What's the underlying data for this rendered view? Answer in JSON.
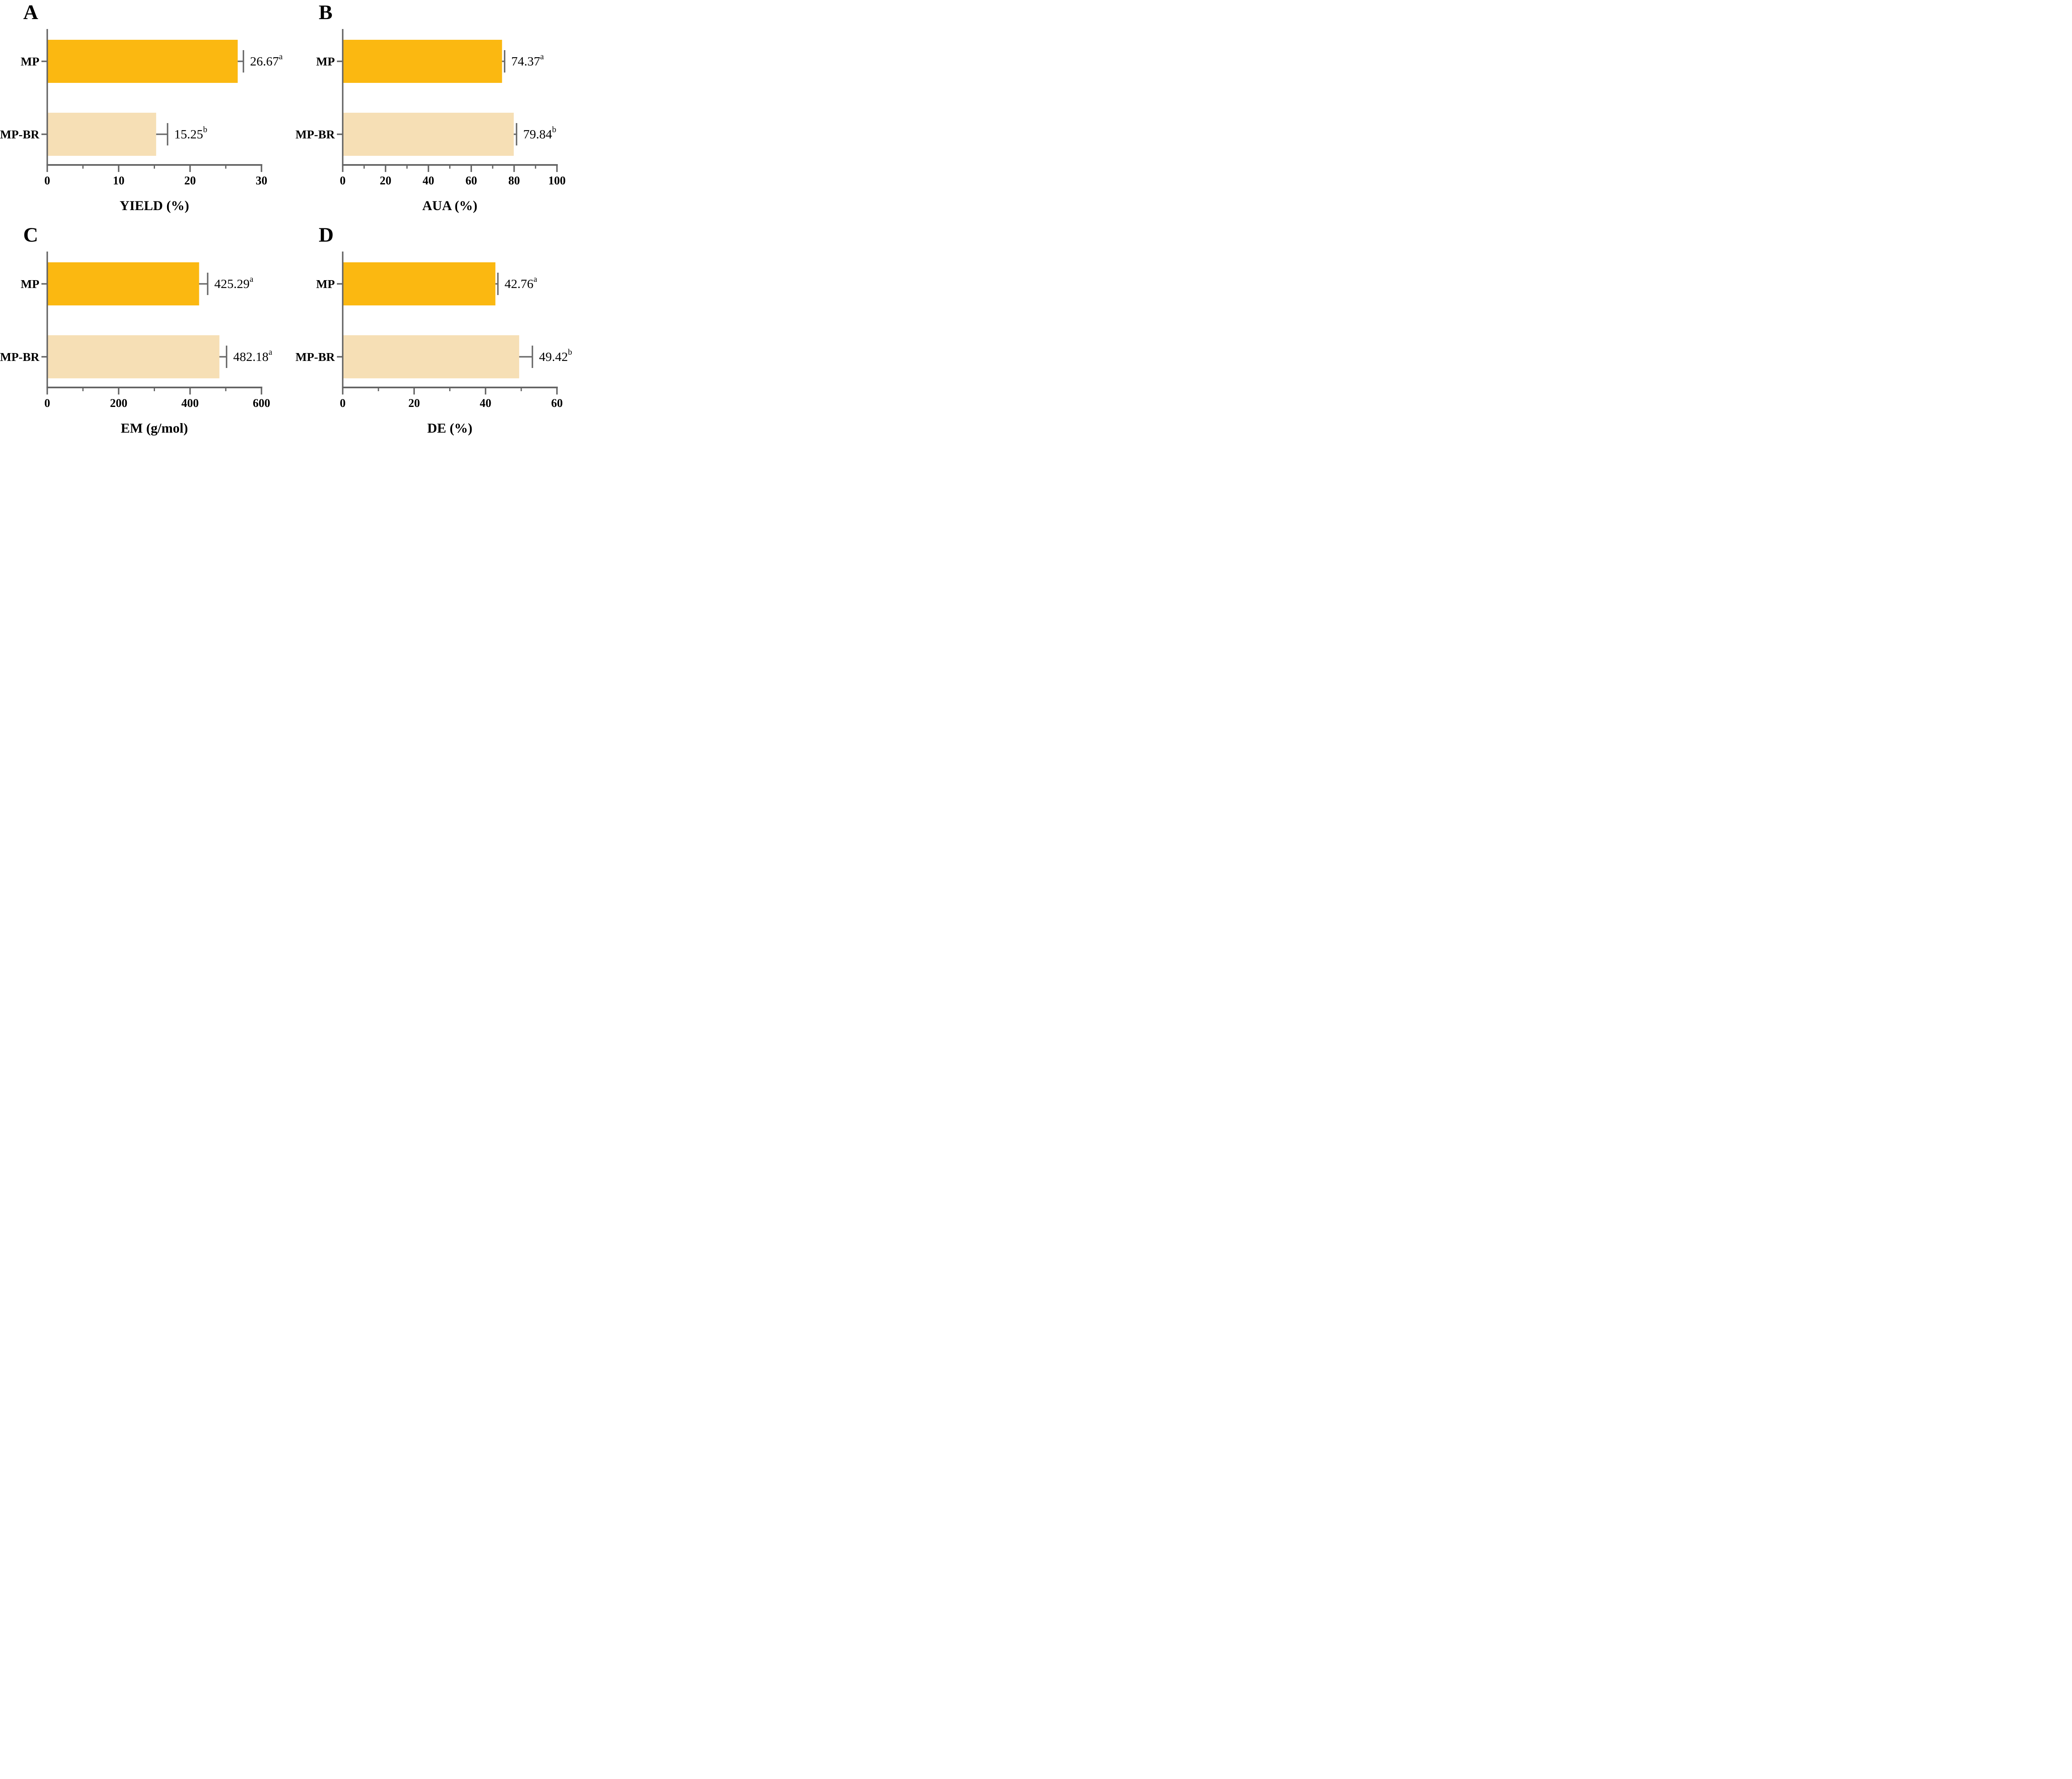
{
  "theme": {
    "background": "#FFFFFF",
    "bar_color_mp": "#FBB811",
    "bar_color_mpbr": "#F6DFB5",
    "axis_color": "#646464",
    "error_bar_color": "#6A6A6A",
    "text_color": "#000000"
  },
  "chart_data": [
    {
      "type": "bar",
      "orientation": "horizontal",
      "panel_label": "A",
      "categories": [
        "MP",
        "MP-BR"
      ],
      "values": [
        26.67,
        15.25
      ],
      "errors": [
        0.8,
        1.6
      ],
      "value_labels": [
        "26.67",
        "15.25"
      ],
      "sig_letters": [
        "a",
        "b"
      ],
      "bar_colors": [
        "#FBB811",
        "#F6DFB5"
      ],
      "xlabel": "YIELD (%)",
      "ylabel": "",
      "xlim": [
        0,
        30
      ],
      "xticks": [
        0,
        10,
        20,
        30
      ],
      "xtick_labels": [
        "0",
        "10",
        "20",
        "30"
      ],
      "minor_xticks": [
        5,
        15,
        25
      ],
      "grid": false,
      "legend": null
    },
    {
      "type": "bar",
      "orientation": "horizontal",
      "panel_label": "B",
      "categories": [
        "MP",
        "MP-BR"
      ],
      "values": [
        74.37,
        79.84
      ],
      "errors": [
        1.2,
        1.3
      ],
      "value_labels": [
        "74.37",
        "79.84"
      ],
      "sig_letters": [
        "a",
        "b"
      ],
      "bar_colors": [
        "#FBB811",
        "#F6DFB5"
      ],
      "xlabel": "AUA (%)",
      "ylabel": "",
      "xlim": [
        0,
        100
      ],
      "xticks": [
        0,
        20,
        40,
        60,
        80,
        100
      ],
      "xtick_labels": [
        "0",
        "20",
        "40",
        "60",
        "80",
        "100"
      ],
      "minor_xticks": [
        10,
        30,
        50,
        70,
        90
      ],
      "grid": false,
      "legend": null
    },
    {
      "type": "bar",
      "orientation": "horizontal",
      "panel_label": "C",
      "categories": [
        "MP",
        "MP-BR"
      ],
      "values": [
        425.29,
        482.18
      ],
      "errors": [
        24,
        20
      ],
      "value_labels": [
        "425.29",
        "482.18"
      ],
      "sig_letters": [
        "a",
        "a"
      ],
      "bar_colors": [
        "#FBB811",
        "#F6DFB5"
      ],
      "xlabel": "EM (g/mol)",
      "ylabel": "",
      "xlim": [
        0,
        600
      ],
      "xticks": [
        0,
        200,
        400,
        600
      ],
      "xtick_labels": [
        "0",
        "200",
        "400",
        "600"
      ],
      "minor_xticks": [
        100,
        300,
        500
      ],
      "grid": false,
      "legend": null
    },
    {
      "type": "bar",
      "orientation": "horizontal",
      "panel_label": "D",
      "categories": [
        "MP",
        "MP-BR"
      ],
      "values": [
        42.76,
        49.42
      ],
      "errors": [
        0.7,
        3.7
      ],
      "value_labels": [
        "42.76",
        "49.42"
      ],
      "sig_letters": [
        "a",
        "b"
      ],
      "bar_colors": [
        "#FBB811",
        "#F6DFB5"
      ],
      "xlabel": "DE (%)",
      "ylabel": "",
      "xlim": [
        0,
        60
      ],
      "xticks": [
        0,
        20,
        40,
        60
      ],
      "xtick_labels": [
        "0",
        "20",
        "40",
        "60"
      ],
      "minor_xticks": [
        10,
        30,
        50
      ],
      "grid": false,
      "legend": null
    }
  ]
}
